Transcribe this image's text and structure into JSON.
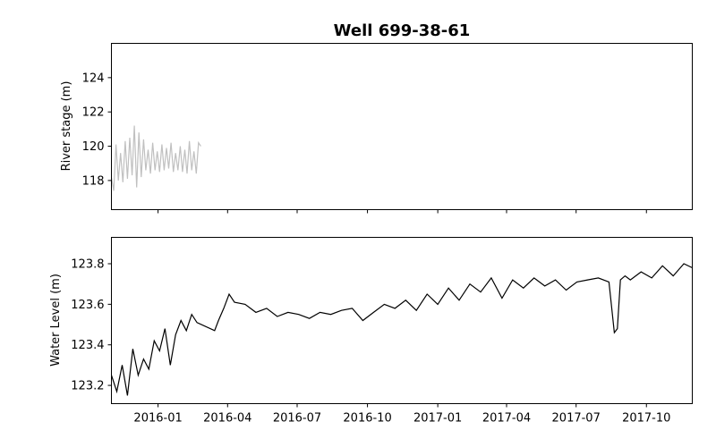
{
  "chart_data": [
    {
      "type": "line",
      "title": "Well 699-38-61",
      "ylabel": "River stage (m)",
      "xlabel": "",
      "ylim": [
        116.3,
        126.0
      ],
      "yticks": [
        118,
        120,
        122,
        124
      ],
      "x_range": [
        "2015-11-01",
        "2017-11-30"
      ],
      "x_ticks_shown": false,
      "series": [
        {
          "color": "#c0c0c0",
          "x": [
            "2015-11-01",
            "2015-11-04",
            "2015-11-07",
            "2015-11-10",
            "2015-11-13",
            "2015-11-16",
            "2015-11-19",
            "2015-11-22",
            "2015-11-25",
            "2015-11-28",
            "2015-12-01",
            "2015-12-04",
            "2015-12-07",
            "2015-12-10",
            "2015-12-13",
            "2015-12-16",
            "2015-12-19",
            "2015-12-22",
            "2015-12-25",
            "2015-12-28",
            "2015-12-31",
            "2016-01-03",
            "2016-01-06",
            "2016-01-09",
            "2016-01-12",
            "2016-01-15",
            "2016-01-18",
            "2016-01-21",
            "2016-01-24",
            "2016-01-27",
            "2016-01-30",
            "2016-02-02",
            "2016-02-05",
            "2016-02-08",
            "2016-02-11",
            "2016-02-14",
            "2016-02-17",
            "2016-02-20",
            "2016-02-23",
            "2016-02-26"
          ],
          "values": [
            118.2,
            117.4,
            120.1,
            118.0,
            119.6,
            117.9,
            120.3,
            118.1,
            120.5,
            118.3,
            121.2,
            117.6,
            120.8,
            118.2,
            120.4,
            118.6,
            119.8,
            118.4,
            120.2,
            118.6,
            119.7,
            118.5,
            120.1,
            118.6,
            119.9,
            118.7,
            120.2,
            118.5,
            119.6,
            118.6,
            120.0,
            118.5,
            119.8,
            118.4,
            120.3,
            118.6,
            119.7,
            118.4,
            120.2,
            120.0
          ]
        }
      ]
    },
    {
      "type": "line",
      "title": "",
      "ylabel": "Water Level (m)",
      "xlabel": "",
      "ylim": [
        123.11,
        123.93
      ],
      "yticks": [
        123.2,
        123.4,
        123.6,
        123.8
      ],
      "x_range": [
        "2015-11-01",
        "2017-11-30"
      ],
      "x_ticks": [
        "2016-01",
        "2016-04",
        "2016-07",
        "2016-10",
        "2017-01",
        "2017-04",
        "2017-07",
        "2017-10"
      ],
      "series": [
        {
          "color": "#000000",
          "x": [
            "2015-11-01",
            "2015-11-08",
            "2015-11-15",
            "2015-11-22",
            "2015-11-29",
            "2015-12-06",
            "2015-12-13",
            "2015-12-20",
            "2015-12-27",
            "2016-01-03",
            "2016-01-10",
            "2016-01-17",
            "2016-01-24",
            "2016-01-31",
            "2016-02-07",
            "2016-02-14",
            "2016-02-21",
            "2016-03-15",
            "2016-03-20",
            "2016-03-27",
            "2016-04-03",
            "2016-04-10",
            "2016-04-24",
            "2016-05-08",
            "2016-05-22",
            "2016-06-05",
            "2016-06-19",
            "2016-07-03",
            "2016-07-17",
            "2016-07-31",
            "2016-08-14",
            "2016-08-28",
            "2016-09-11",
            "2016-09-25",
            "2016-10-09",
            "2016-10-23",
            "2016-11-06",
            "2016-11-20",
            "2016-12-04",
            "2016-12-18",
            "2017-01-01",
            "2017-01-15",
            "2017-01-29",
            "2017-02-12",
            "2017-02-26",
            "2017-03-12",
            "2017-03-26",
            "2017-04-09",
            "2017-04-23",
            "2017-05-07",
            "2017-05-21",
            "2017-06-04",
            "2017-06-18",
            "2017-07-02",
            "2017-07-16",
            "2017-07-30",
            "2017-08-13",
            "2017-08-20",
            "2017-08-24",
            "2017-08-28",
            "2017-09-03",
            "2017-09-10",
            "2017-09-24",
            "2017-10-08",
            "2017-10-22",
            "2017-11-05",
            "2017-11-19",
            "2017-11-30"
          ],
          "values": [
            123.25,
            123.17,
            123.3,
            123.15,
            123.38,
            123.25,
            123.33,
            123.28,
            123.42,
            123.37,
            123.48,
            123.3,
            123.45,
            123.52,
            123.47,
            123.55,
            123.51,
            123.47,
            123.52,
            123.58,
            123.65,
            123.61,
            123.6,
            123.56,
            123.58,
            123.54,
            123.56,
            123.55,
            123.53,
            123.56,
            123.55,
            123.57,
            123.58,
            123.52,
            123.56,
            123.6,
            123.58,
            123.62,
            123.57,
            123.65,
            123.6,
            123.68,
            123.62,
            123.7,
            123.66,
            123.73,
            123.63,
            123.72,
            123.68,
            123.73,
            123.69,
            123.72,
            123.67,
            123.71,
            123.72,
            123.73,
            123.71,
            123.46,
            123.48,
            123.72,
            123.74,
            123.72,
            123.76,
            123.73,
            123.79,
            123.74,
            123.8,
            123.78
          ]
        }
      ]
    }
  ]
}
